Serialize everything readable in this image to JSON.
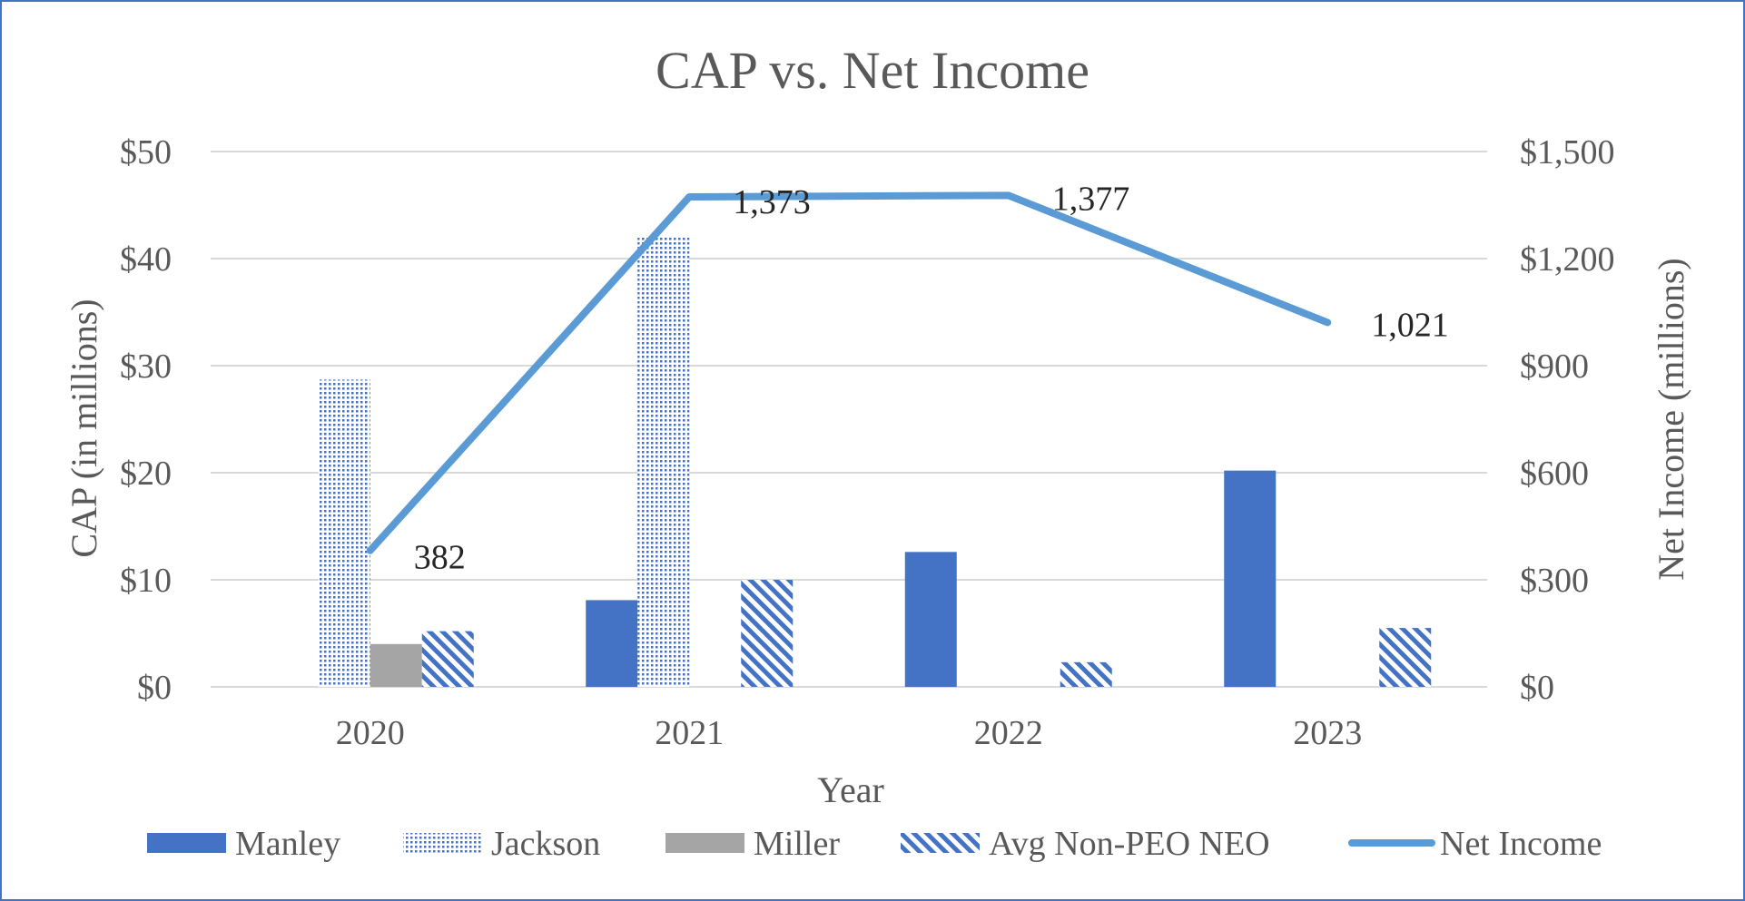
{
  "chart_data": {
    "type": "bar",
    "title": "CAP vs. Net Income",
    "xlabel": "Year",
    "ylabel": "CAP (in millions)",
    "y2label": "Net Income (millions)",
    "categories": [
      "2020",
      "2021",
      "2022",
      "2023"
    ],
    "ylim": [
      0,
      50
    ],
    "y2lim": [
      0,
      1500
    ],
    "yticks": [
      "$0",
      "$10",
      "$20",
      "$30",
      "$40",
      "$50"
    ],
    "y2ticks": [
      "$0",
      "$300",
      "$600",
      "$900",
      "$1,200",
      "$1,500"
    ],
    "grid": true,
    "legend_position": "bottom",
    "series": [
      {
        "name": "Manley",
        "kind": "bar",
        "pattern": "solid",
        "color": "#4472C4",
        "values": [
          0,
          8.1,
          12.6,
          20.2
        ]
      },
      {
        "name": "Jackson",
        "kind": "bar",
        "pattern": "dots",
        "color": "#4472C4",
        "values": [
          28.7,
          42.0,
          0,
          0
        ]
      },
      {
        "name": "Miller",
        "kind": "bar",
        "pattern": "solid",
        "color": "#A5A5A5",
        "values": [
          4.0,
          0,
          0,
          0
        ]
      },
      {
        "name": "Avg Non-PEO NEO",
        "kind": "bar",
        "pattern": "diagonal",
        "color": "#4472C4",
        "values": [
          5.2,
          10.0,
          2.3,
          5.5
        ]
      },
      {
        "name": "Net Income",
        "kind": "line",
        "axis": "secondary",
        "color": "#5B9BD5",
        "values": [
          382,
          1373,
          1377,
          1021
        ],
        "labels": [
          "382",
          "1,373",
          "1,377",
          "1,021"
        ]
      }
    ]
  }
}
